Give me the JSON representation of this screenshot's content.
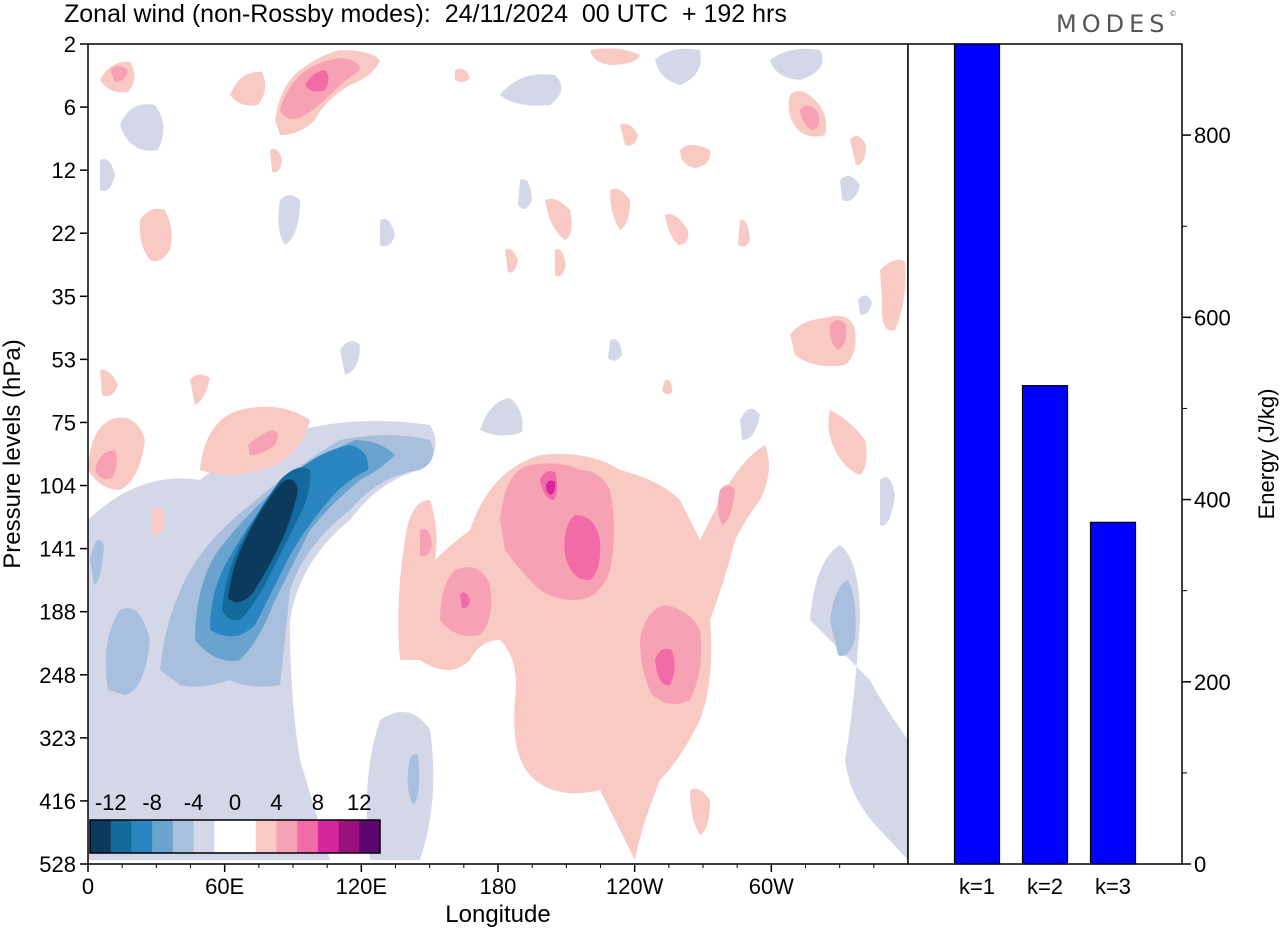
{
  "title": "Zonal wind (non-Rossby modes):  24/11/2024  00 UTC  + 192 hrs",
  "brand": "MODES",
  "brand_mark": "©",
  "colors": {
    "bar": "#0000ff",
    "neg": [
      "#0b3a5c",
      "#136a9c",
      "#2a86c0",
      "#6aa3cd",
      "#a8c0de",
      "#d4d7e8"
    ],
    "pos": [
      "#f9c9c4",
      "#f7a2b4",
      "#f26aa7",
      "#d5279a",
      "#9c0f7f",
      "#5a0570"
    ]
  },
  "chart_data": [
    {
      "type": "heatmap",
      "xlabel": "Longitude",
      "ylabel": "Pressure levels (hPa)",
      "x_ticks": [
        "0",
        "60E",
        "120E",
        "180",
        "120W",
        "60W"
      ],
      "y_ticks": [
        "2",
        "6",
        "12",
        "22",
        "35",
        "53",
        "75",
        "104",
        "141",
        "188",
        "248",
        "323",
        "416",
        "528"
      ],
      "colorbar": {
        "labels": [
          "-12",
          "-8",
          "-4",
          "0",
          "4",
          "8",
          "12"
        ],
        "levels": [
          -14,
          -12,
          -10,
          -8,
          -6,
          -4,
          -2,
          0,
          2,
          4,
          6,
          8,
          10,
          12,
          14
        ]
      },
      "features": [
        {
          "lon": 75,
          "level": "141",
          "value": -14
        },
        {
          "lon": 115,
          "level": "104",
          "value": -7
        },
        {
          "lon": 220,
          "level": "141",
          "value": 7
        },
        {
          "lon": 255,
          "level": "248",
          "value": 6
        },
        {
          "lon": 105,
          "level": "6",
          "value": 7
        },
        {
          "lon": 330,
          "level": "53",
          "value": 5
        },
        {
          "lon": 330,
          "level": "188",
          "value": -5
        }
      ]
    },
    {
      "type": "bar",
      "categories": [
        "k=1",
        "k=2",
        "k=3"
      ],
      "values": [
        900,
        525,
        375
      ],
      "ylabel": "Energy (J/kg)",
      "y_ticks": [
        0,
        200,
        400,
        600,
        800
      ],
      "ylim": [
        0,
        900
      ]
    }
  ]
}
